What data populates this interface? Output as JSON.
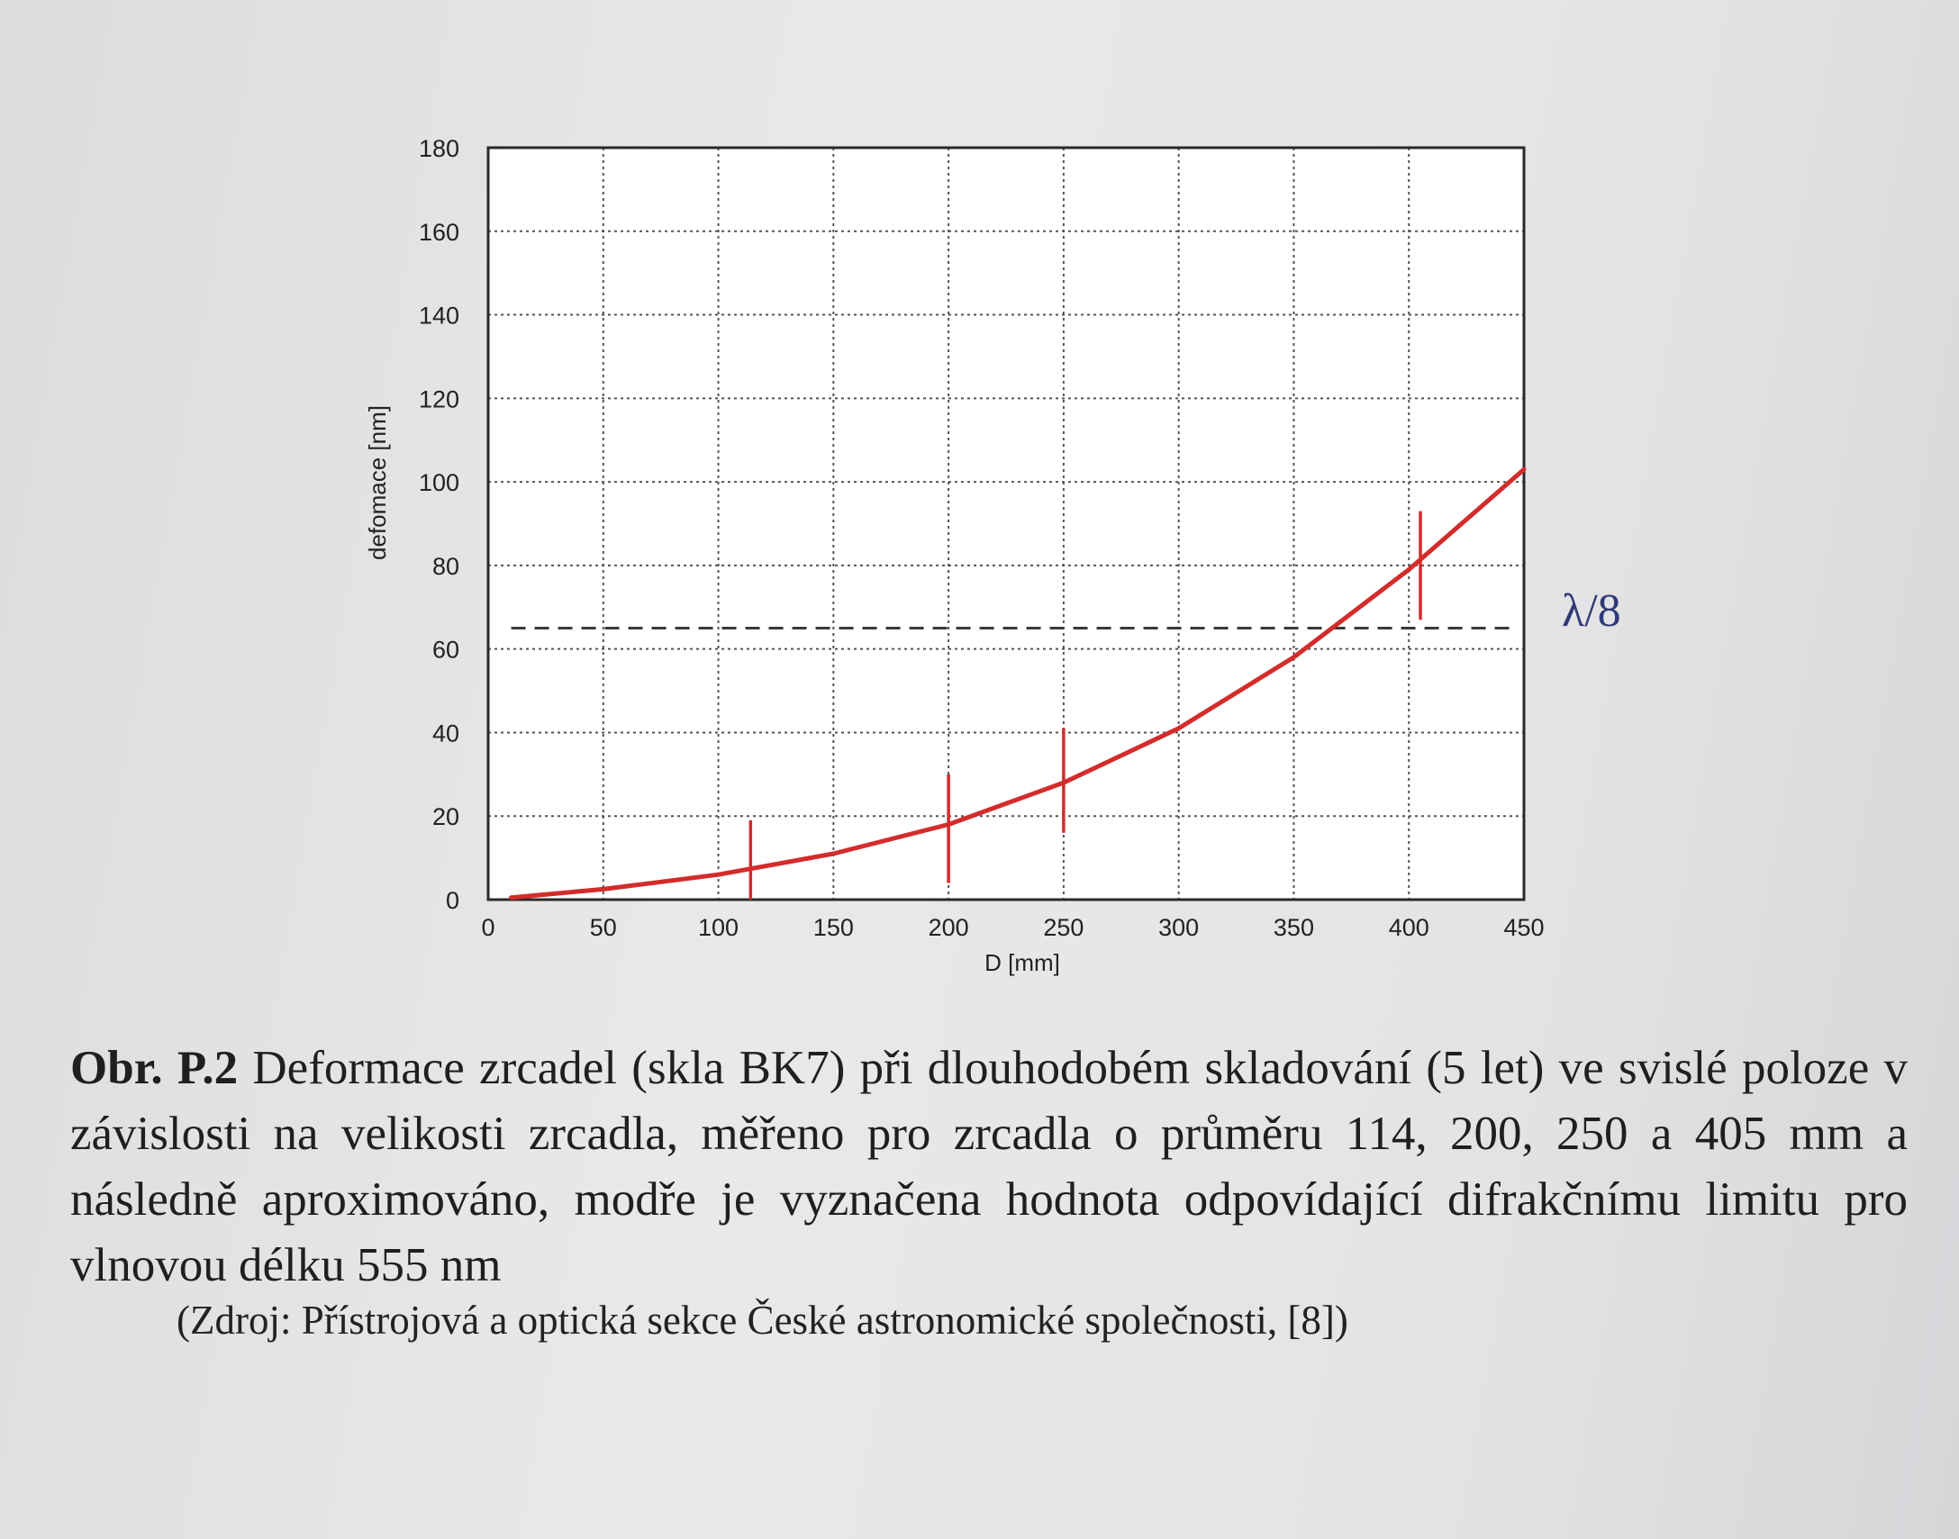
{
  "chart_data": {
    "type": "line",
    "xlabel": "D [mm]",
    "ylabel": "defomace [nm]",
    "xlim": [
      0,
      450
    ],
    "ylim": [
      0,
      180
    ],
    "x_ticks": [
      "0",
      "50",
      "100",
      "150",
      "200",
      "250",
      "300",
      "350",
      "400",
      "450"
    ],
    "y_ticks": [
      "0",
      "20",
      "40",
      "60",
      "80",
      "100",
      "120",
      "140",
      "160",
      "180"
    ],
    "grid": true,
    "series": [
      {
        "color": "#d42b2b",
        "x": [
          10,
          50,
          100,
          150,
          200,
          250,
          300,
          350,
          400,
          450
        ],
        "y": [
          0.5,
          2.5,
          6,
          11,
          18,
          28,
          41,
          58,
          79,
          103
        ]
      }
    ],
    "error_bars": [
      {
        "x": 114,
        "y_low": 0,
        "y_high": 19
      },
      {
        "x": 200,
        "y_low": 4,
        "y_high": 30
      },
      {
        "x": 250,
        "y_low": 16,
        "y_high": 41
      },
      {
        "x": 405,
        "y_low": 67,
        "y_high": 93
      }
    ],
    "reference_line": {
      "y": 65,
      "x_range": [
        10,
        450
      ],
      "style": "dashed",
      "label": "λ/8",
      "label_color": "#2f3a78"
    }
  },
  "caption": {
    "lead": "Obr. P.2",
    "text": " Deformace zrcadel (skla BK7) při dlouhodobém skladování (5 let) ve svislé poloze v závislosti na velikosti zrcadla, měřeno pro zrcadla o průměru 114, 200, 250 a 405 mm a následně aproximováno, modře je vyznačena hodnota odpovídající difrakčnímu limitu pro vlnovou délku 555 nm",
    "source": "(Zdroj: Přístrojová a optická sekce České astronomické společnosti, [8])"
  }
}
